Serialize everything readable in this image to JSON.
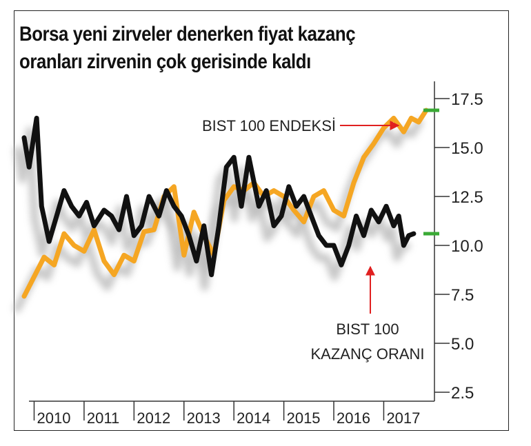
{
  "title_lines": [
    "Borsa yeni zirveler denerken fiyat kazanç",
    "oranları zirvenin çok gerisinde kaldı"
  ],
  "colors": {
    "index_line": "#f5a623",
    "pe_line": "#111111",
    "shadow": "#bdbdbd",
    "arrow": "#e02020",
    "marker": "#3aaa35",
    "axis": "#333333"
  },
  "annotations": {
    "index_label": "BIST 100 ENDEKSİ",
    "pe_label_line1": "BIST 100",
    "pe_label_line2": "KAZANÇ ORANI"
  },
  "chart_data": {
    "type": "line",
    "x_labels": [
      "2010",
      "2011",
      "2012",
      "2013",
      "2014",
      "2015",
      "2016",
      "2017"
    ],
    "ylim": [
      2.5,
      17.5
    ],
    "yticks": [
      "17.5",
      "15.0",
      "12.5",
      "10.0",
      "7.5",
      "5.0",
      "2.5"
    ],
    "grid": false,
    "series": [
      {
        "name": "BIST 100 ENDEKSİ",
        "x": [
          2009.8,
          2010.0,
          2010.2,
          2010.4,
          2010.6,
          2010.8,
          2011.0,
          2011.2,
          2011.4,
          2011.6,
          2011.8,
          2012.0,
          2012.2,
          2012.4,
          2012.6,
          2012.8,
          2013.0,
          2013.2,
          2013.4,
          2013.6,
          2013.8,
          2014.0,
          2014.2,
          2014.4,
          2014.6,
          2014.8,
          2015.0,
          2015.2,
          2015.4,
          2015.6,
          2015.8,
          2016.0,
          2016.2,
          2016.4,
          2016.6,
          2016.8,
          2017.0,
          2017.2,
          2017.4,
          2017.55,
          2017.7,
          2017.85
        ],
        "values": [
          7.4,
          8.4,
          9.4,
          9.0,
          10.6,
          10.0,
          9.7,
          10.8,
          9.2,
          8.5,
          9.5,
          9.2,
          10.7,
          10.8,
          12.5,
          13.0,
          9.5,
          11.7,
          10.5,
          9.5,
          12.3,
          13.0,
          12.8,
          13.2,
          12.5,
          12.8,
          12.5,
          11.8,
          11.2,
          12.5,
          12.8,
          11.8,
          11.5,
          13.2,
          14.5,
          15.2,
          16.0,
          16.5,
          15.8,
          16.5,
          16.3,
          16.9
        ]
      },
      {
        "name": "BIST 100 KAZANÇ ORANI",
        "x": [
          2009.8,
          2009.9,
          2010.05,
          2010.15,
          2010.3,
          2010.45,
          2010.6,
          2010.75,
          2010.9,
          2011.05,
          2011.2,
          2011.4,
          2011.55,
          2011.7,
          2011.85,
          2012.0,
          2012.15,
          2012.3,
          2012.5,
          2012.65,
          2012.8,
          2012.95,
          2013.1,
          2013.25,
          2013.4,
          2013.55,
          2013.7,
          2013.85,
          2014.0,
          2014.15,
          2014.3,
          2014.5,
          2014.65,
          2014.8,
          2014.95,
          2015.1,
          2015.25,
          2015.4,
          2015.55,
          2015.7,
          2015.85,
          2016.0,
          2016.15,
          2016.3,
          2016.45,
          2016.6,
          2016.75,
          2016.9,
          2017.05,
          2017.2,
          2017.3,
          2017.4,
          2017.5,
          2017.6
        ],
        "values": [
          15.5,
          14.0,
          16.5,
          12.0,
          10.2,
          11.5,
          12.8,
          12.0,
          11.5,
          12.2,
          11.0,
          11.8,
          11.5,
          10.8,
          12.5,
          10.5,
          11.0,
          12.5,
          11.5,
          12.8,
          12.0,
          11.5,
          10.5,
          9.2,
          11.0,
          8.5,
          11.0,
          14.0,
          14.5,
          12.0,
          14.5,
          12.0,
          12.8,
          11.0,
          11.5,
          13.0,
          12.0,
          12.5,
          11.5,
          10.5,
          10.0,
          10.0,
          9.0,
          10.0,
          11.5,
          10.5,
          11.8,
          11.2,
          12.0,
          11.0,
          11.5,
          10.0,
          10.5,
          10.6
        ]
      }
    ]
  }
}
